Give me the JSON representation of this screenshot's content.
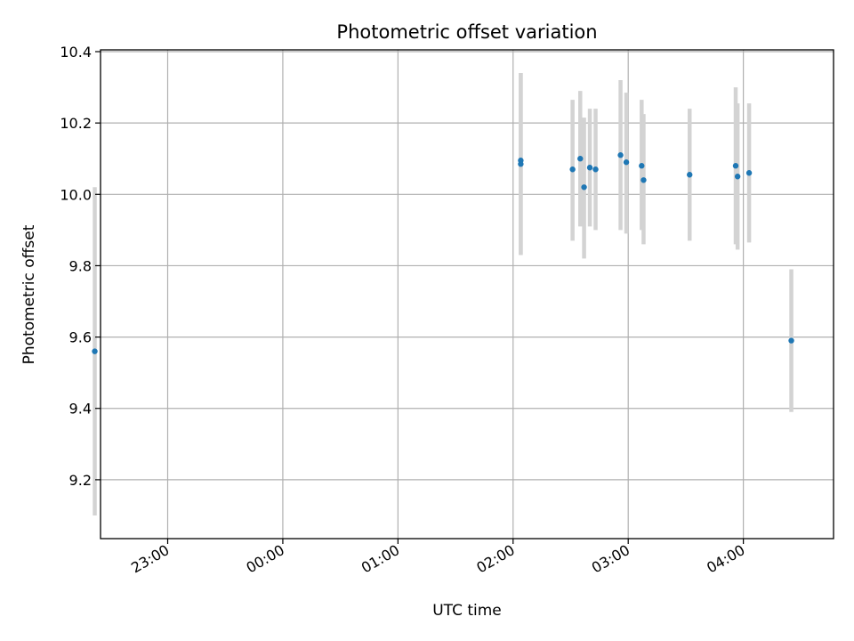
{
  "chart_data": {
    "type": "scatter",
    "title": "Photometric offset variation",
    "xlabel": "UTC time",
    "ylabel": "Photometric offset",
    "grid": true,
    "x_axis_type": "time",
    "xlim": [
      "22:25",
      "04:47"
    ],
    "ylim": [
      9.035,
      10.405
    ],
    "x_ticks": [
      "23:00",
      "00:00",
      "01:00",
      "02:00",
      "03:00",
      "04:00"
    ],
    "y_ticks": [
      9.2,
      9.4,
      9.6,
      9.8,
      10.0,
      10.2,
      10.4
    ],
    "y_tick_labels": [
      "9.2",
      "9.4",
      "9.6",
      "9.8",
      "10.0",
      "10.2",
      "10.4"
    ],
    "marker_color": "#1f77b4",
    "errorbar_color": "#d3d3d3",
    "points": [
      {
        "x": "22:22",
        "y": 9.56,
        "err_low": 9.1,
        "err_high": 10.02
      },
      {
        "x": "02:04",
        "y": 10.095,
        "err_low": 9.83,
        "err_high": 10.34
      },
      {
        "x": "02:04",
        "y": 10.085,
        "err_low": 9.83,
        "err_high": 10.34
      },
      {
        "x": "02:31",
        "y": 10.07,
        "err_low": 9.87,
        "err_high": 10.265
      },
      {
        "x": "02:35",
        "y": 10.1,
        "err_low": 9.91,
        "err_high": 10.29
      },
      {
        "x": "02:37",
        "y": 10.02,
        "err_low": 9.82,
        "err_high": 10.215
      },
      {
        "x": "02:40",
        "y": 10.075,
        "err_low": 9.91,
        "err_high": 10.24
      },
      {
        "x": "02:43",
        "y": 10.07,
        "err_low": 9.9,
        "err_high": 10.24
      },
      {
        "x": "02:56",
        "y": 10.11,
        "err_low": 9.9,
        "err_high": 10.32
      },
      {
        "x": "02:59",
        "y": 10.09,
        "err_low": 9.89,
        "err_high": 10.285
      },
      {
        "x": "03:07",
        "y": 10.08,
        "err_low": 9.9,
        "err_high": 10.265
      },
      {
        "x": "03:08",
        "y": 10.04,
        "err_low": 9.86,
        "err_high": 10.225
      },
      {
        "x": "03:32",
        "y": 10.055,
        "err_low": 9.87,
        "err_high": 10.24
      },
      {
        "x": "03:56",
        "y": 10.08,
        "err_low": 9.86,
        "err_high": 10.3
      },
      {
        "x": "03:57",
        "y": 10.05,
        "err_low": 9.845,
        "err_high": 10.255
      },
      {
        "x": "04:03",
        "y": 10.06,
        "err_low": 9.865,
        "err_high": 10.255
      },
      {
        "x": "04:25",
        "y": 9.59,
        "err_low": 9.39,
        "err_high": 9.79
      }
    ]
  }
}
